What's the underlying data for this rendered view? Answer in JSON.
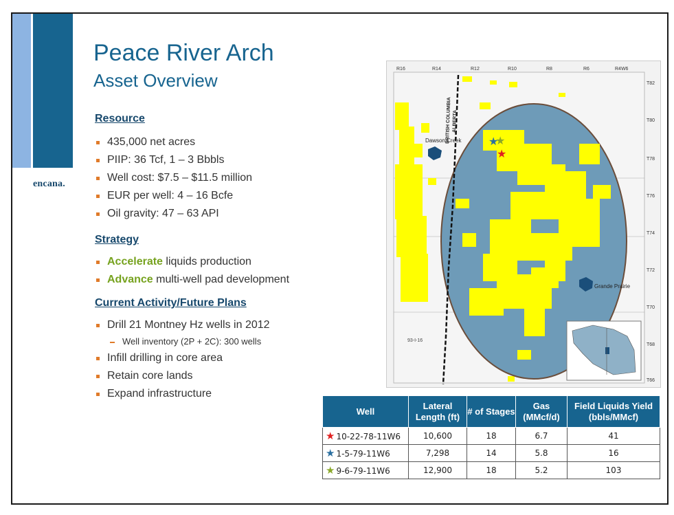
{
  "logo": "encana.",
  "title": "Peace River Arch",
  "subtitle": "Asset Overview",
  "resource": {
    "heading": "Resource",
    "items": [
      "435,000 net acres",
      "PIIP: 36 Tcf, 1 – 3 Bbbls",
      "Well cost: $7.5 – $11.5 million",
      "EUR per well: 4 – 16 Bcfe",
      "Oil gravity: 47 – 63 API"
    ]
  },
  "strategy": {
    "heading": "Strategy",
    "items": [
      {
        "emph": "Accelerate",
        "rest": " liquids production"
      },
      {
        "emph": "Advance",
        "rest": " multi-well pad development"
      }
    ]
  },
  "activity": {
    "heading": "Current Activity/Future Plans",
    "items": [
      "Drill 21 Montney Hz wells in 2012",
      "Infill drilling in core area",
      "Retain core lands",
      "Expand infrastructure"
    ],
    "sub_item": "Well inventory (2P + 2C): 300 wells"
  },
  "map": {
    "ranges": [
      "R16",
      "R14",
      "R12",
      "R10",
      "R8",
      "R6",
      "R4W6"
    ],
    "townships": [
      "T82",
      "T80",
      "T78",
      "T76",
      "T74",
      "T72",
      "T70",
      "T68",
      "T66"
    ],
    "towns": [
      "Dawson Creek",
      "Grande Prairie"
    ],
    "border_labels": [
      "BRITISH COLUMBIA",
      "ALBERTA"
    ],
    "grid_label": "93-I-16",
    "colors": {
      "ellipse": "#6e9bb8",
      "land": "#ffff00",
      "border": "#111111"
    }
  },
  "table": {
    "headers": [
      "Well",
      "Lateral Length (ft)",
      "# of Stages",
      "Gas (MMcf/d)",
      "Field Liquids Yield (bbls/MMcf)"
    ],
    "rows": [
      {
        "star_color": "#e02020",
        "well": "10-22-78-11W6",
        "length": "10,600",
        "stages": "18",
        "gas": "6.7",
        "yield": "41"
      },
      {
        "star_color": "#2a6fa0",
        "well": "1-5-79-11W6",
        "length": "7,298",
        "stages": "14",
        "gas": "5.8",
        "yield": "16"
      },
      {
        "star_color": "#8aa82a",
        "well": "9-6-79-11W6",
        "length": "12,900",
        "stages": "18",
        "gas": "5.2",
        "yield": "103"
      }
    ]
  }
}
